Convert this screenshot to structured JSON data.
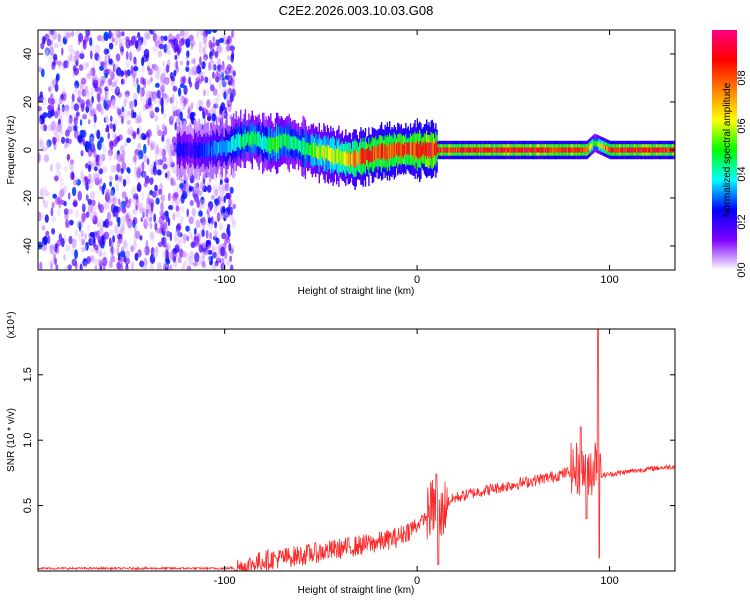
{
  "title": "C2E2.2026.003.10.03.G08",
  "chart_data": [
    {
      "type": "heatmap",
      "name": "spectrogram",
      "xlabel": "Height of straight line (km)",
      "ylabel": "Frequency (Hz)",
      "xlim": [
        -197,
        134
      ],
      "ylim": [
        -50,
        50
      ],
      "xticks": [
        -100,
        0,
        100
      ],
      "yticks": [
        -40,
        -20,
        0,
        20,
        40
      ],
      "colorbar": {
        "label": "Normalized spectral amplitude",
        "range": [
          0,
          1
        ],
        "ticks": [
          0.0,
          0.2,
          0.4,
          0.6,
          0.8
        ],
        "tick_labels": [
          "0.0",
          "0.2",
          "0.4",
          "0.6",
          "0.8"
        ],
        "colors": [
          "#ffffff",
          "#7f00ff",
          "#0000ff",
          "#00ffff",
          "#00ff00",
          "#ffff00",
          "#ff8000",
          "#ff0000",
          "#ff0080"
        ]
      },
      "noise_region_x": [
        -197,
        -95
      ],
      "ridge": {
        "x": [
          -125,
          -118,
          -108,
          -100,
          -92,
          -85,
          -80,
          -75,
          -70,
          -65,
          -60,
          -55,
          -50,
          -45,
          -40,
          -35,
          -30,
          -25,
          -20,
          -15,
          -10,
          -5,
          0,
          10,
          20,
          40,
          60,
          80,
          88,
          92,
          100,
          120,
          134
        ],
        "frequency": [
          0,
          0,
          0,
          1,
          4,
          5,
          3,
          2,
          4,
          3,
          1,
          0,
          -1,
          -2,
          -3,
          -4,
          -3,
          -2,
          -1,
          -1,
          0,
          0,
          0,
          0,
          0,
          0,
          0,
          0,
          0,
          3,
          0,
          0,
          0
        ],
        "amplitude": [
          0.25,
          0.2,
          0.3,
          0.35,
          0.45,
          0.5,
          0.4,
          0.55,
          0.5,
          0.45,
          0.45,
          0.55,
          0.6,
          0.6,
          0.65,
          0.75,
          0.8,
          0.85,
          0.85,
          0.85,
          0.85,
          0.85,
          0.9,
          0.9,
          0.9,
          0.9,
          0.9,
          0.9,
          0.85,
          0.5,
          0.9,
          0.9,
          0.9
        ]
      }
    },
    {
      "type": "line",
      "name": "snr",
      "xlabel": "Height of straight line (km)",
      "ylabel": "SNR (10 * v/v)",
      "yscale_label": "(x10⁴)",
      "xlim": [
        -197,
        134
      ],
      "ylim": [
        0,
        1.85
      ],
      "xticks": [
        -100,
        0,
        100
      ],
      "yticks": [
        0.5,
        1.0,
        1.5
      ],
      "ytick_labels": [
        "0.5",
        "1.0",
        "1.5"
      ],
      "color": "#ff2a2a",
      "envelope": {
        "x": [
          -197,
          -150,
          -100,
          -90,
          -80,
          -60,
          -40,
          -20,
          -10,
          0,
          5,
          8,
          10,
          12,
          15,
          20,
          30,
          40,
          50,
          60,
          70,
          75,
          80,
          85,
          88,
          90,
          92,
          93,
          94,
          95,
          96,
          100,
          110,
          120,
          134
        ],
        "y": [
          0.02,
          0.02,
          0.02,
          0.03,
          0.08,
          0.12,
          0.17,
          0.22,
          0.26,
          0.35,
          0.42,
          0.5,
          0.45,
          0.4,
          0.52,
          0.56,
          0.6,
          0.63,
          0.66,
          0.69,
          0.72,
          0.74,
          0.76,
          0.78,
          0.8,
          0.78,
          0.8,
          0.85,
          1.0,
          0.7,
          0.73,
          0.74,
          0.76,
          0.78,
          0.8
        ]
      },
      "spikes": [
        {
          "x": 10,
          "y": 0.74
        },
        {
          "x": 11,
          "y": 0.05
        },
        {
          "x": 85,
          "y": 1.1
        },
        {
          "x": 88,
          "y": 0.4
        },
        {
          "x": 94,
          "y": 1.85
        },
        {
          "x": 94.6,
          "y": 0.1
        }
      ]
    }
  ]
}
